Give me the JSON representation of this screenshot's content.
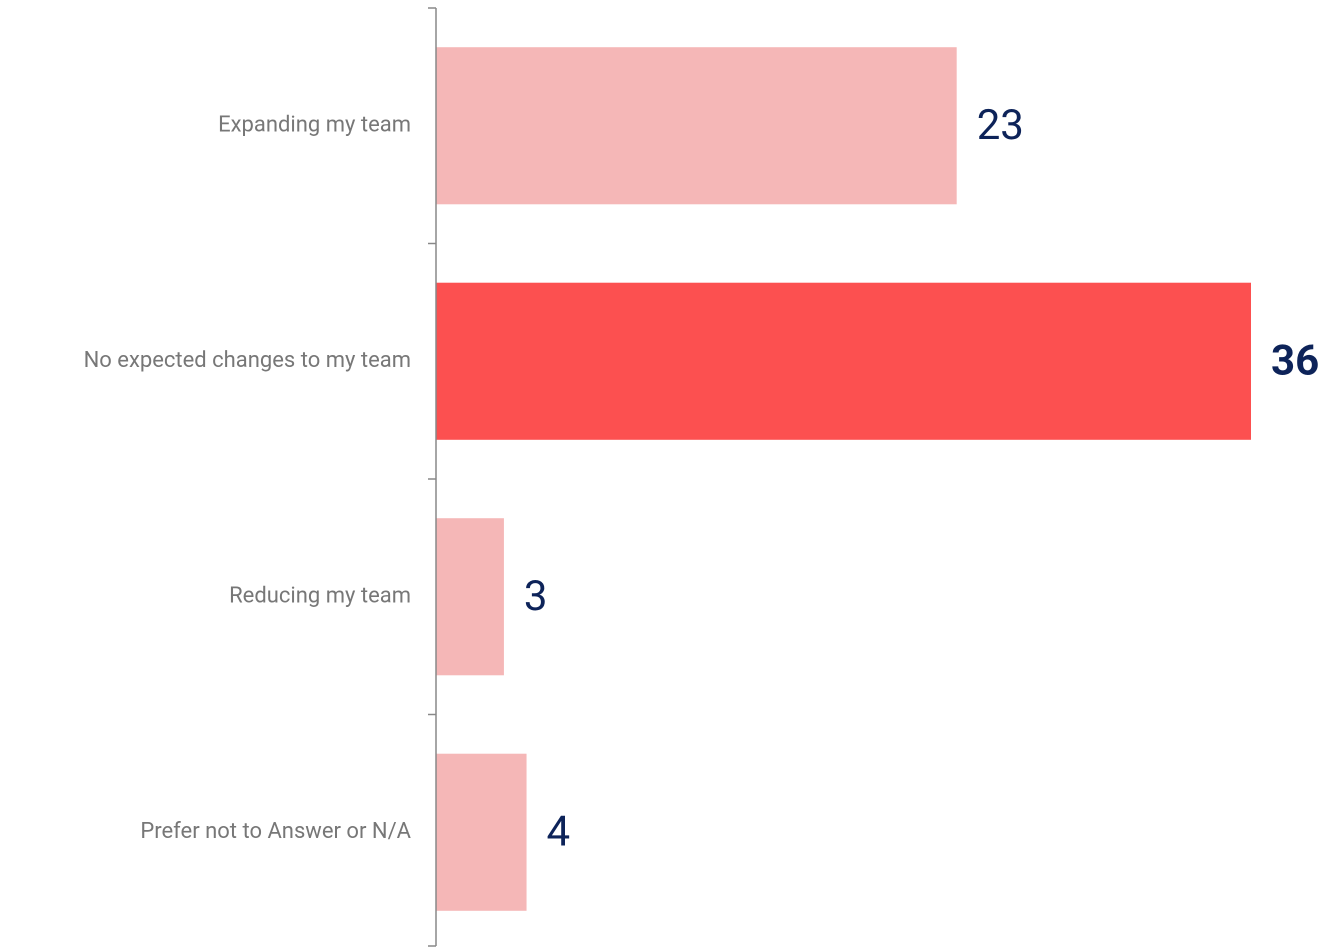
{
  "chart_data": {
    "type": "hbar",
    "categories": [
      "Expanding my team",
      "No expected changes to my team",
      "Reducing my team",
      "Prefer not to Answer or N/A"
    ],
    "values": [
      23,
      36,
      3,
      4
    ],
    "colors": [
      "#f5b7b7",
      "#fc5050",
      "#f5b7b7",
      "#f5b7b7"
    ],
    "highlight": 1
  }
}
